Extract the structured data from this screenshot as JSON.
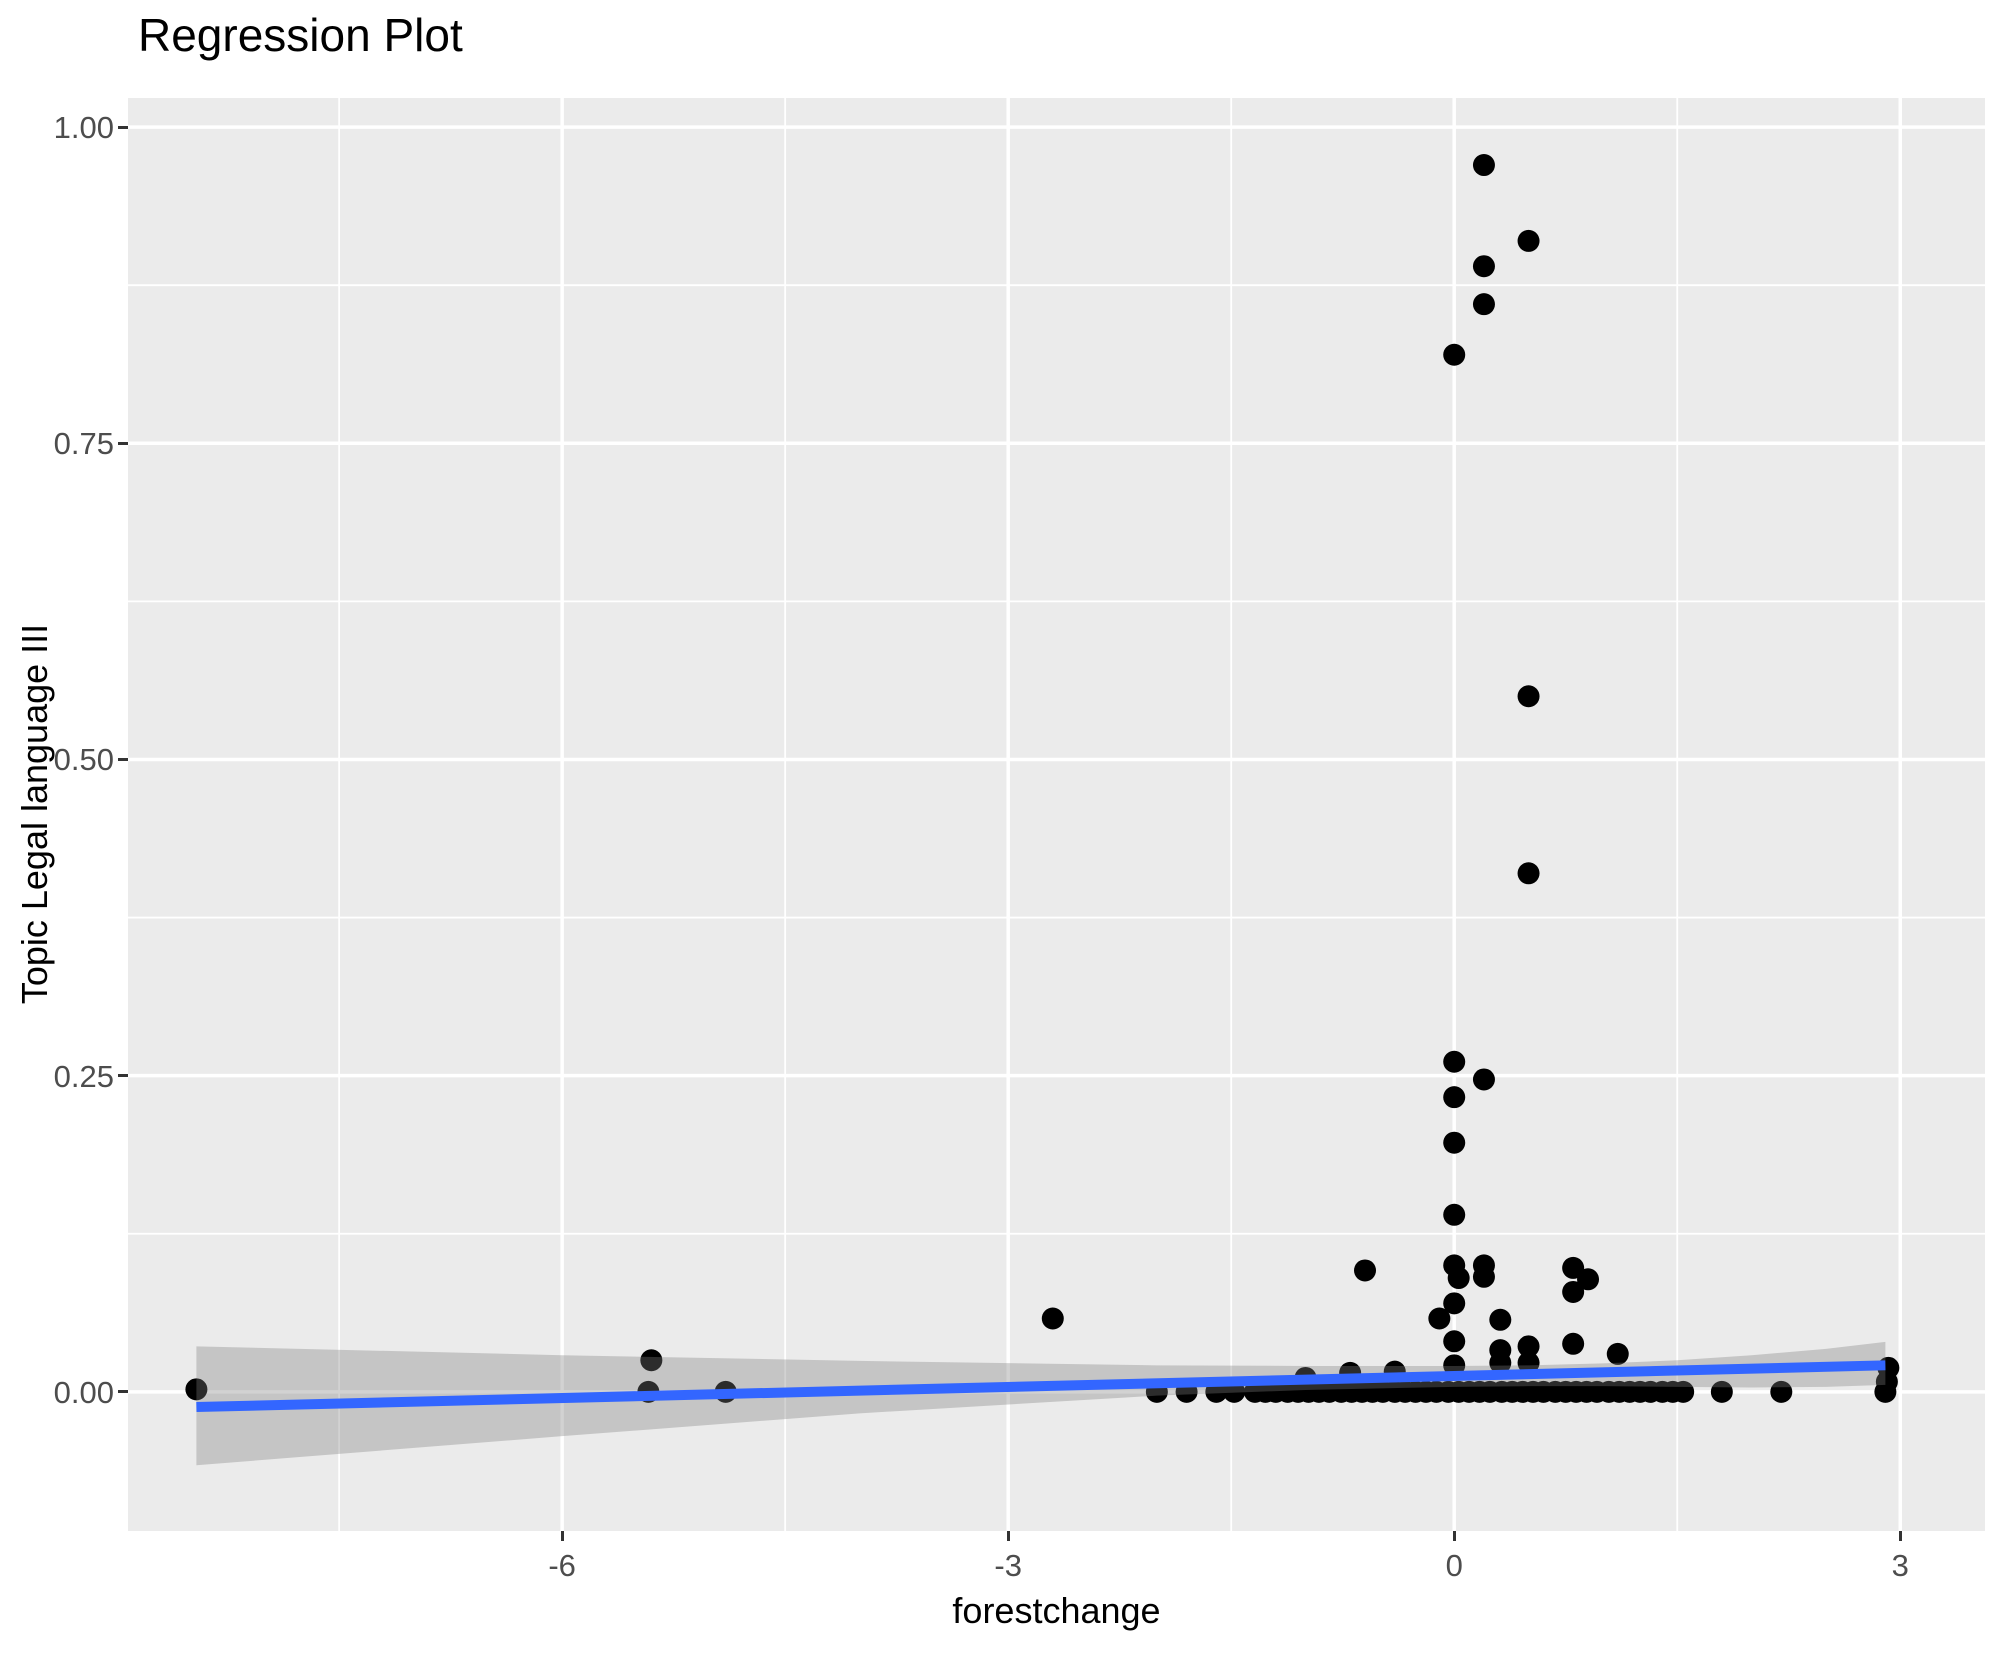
{
  "title": "Regression Plot",
  "chart_data": {
    "type": "scatter",
    "title": "Regression Plot",
    "xlabel": "forestchange",
    "ylabel": "Topic Legal language III",
    "xlim": [
      -8.92,
      3.57
    ],
    "ylim": [
      -0.11,
      1.023
    ],
    "x_major_ticks": [
      -6,
      -3,
      0,
      3
    ],
    "x_tick_labels": [
      "-6",
      "-3",
      "0",
      "3"
    ],
    "x_minor_ticks": [
      -7.5,
      -4.5,
      -1.5,
      1.5
    ],
    "y_major_ticks": [
      0.0,
      0.25,
      0.5,
      0.75,
      1.0
    ],
    "y_tick_labels": [
      "0.00",
      "0.25",
      "0.50",
      "0.75",
      "1.00"
    ],
    "y_minor_ticks": [
      0.125,
      0.375,
      0.625,
      0.875
    ],
    "grid": true,
    "legend": "none",
    "points": [
      [
        0.2,
        0.97
      ],
      [
        0.5,
        0.91
      ],
      [
        0.2,
        0.89
      ],
      [
        0.2,
        0.86
      ],
      [
        0.0,
        0.82
      ],
      [
        0.5,
        0.55
      ],
      [
        0.5,
        0.41
      ],
      [
        0.0,
        0.261
      ],
      [
        0.2,
        0.247
      ],
      [
        0.0,
        0.233
      ],
      [
        0.0,
        0.197
      ],
      [
        0.0,
        0.14
      ],
      [
        -0.6,
        0.096
      ],
      [
        0.0,
        0.1
      ],
      [
        0.03,
        0.09
      ],
      [
        0.2,
        0.1
      ],
      [
        0.2,
        0.091
      ],
      [
        0.8,
        0.098
      ],
      [
        0.9,
        0.089
      ],
      [
        0.8,
        0.079
      ],
      [
        0.0,
        0.07
      ],
      [
        -0.1,
        0.058
      ],
      [
        -2.7,
        0.058
      ],
      [
        0.31,
        0.057
      ],
      [
        0.0,
        0.04
      ],
      [
        0.31,
        0.033
      ],
      [
        0.5,
        0.036
      ],
      [
        0.8,
        0.038
      ],
      [
        1.1,
        0.03
      ],
      [
        0.0,
        0.021
      ],
      [
        0.31,
        0.023
      ],
      [
        0.5,
        0.023
      ],
      [
        -5.4,
        0.025
      ],
      [
        -1.0,
        0.011
      ],
      [
        -0.7,
        0.015
      ],
      [
        -0.4,
        0.016
      ],
      [
        2.92,
        0.019
      ],
      [
        2.91,
        0.008
      ],
      [
        -8.46,
        0.002
      ],
      [
        -5.42,
        0.0
      ],
      [
        -4.9,
        0.0
      ],
      [
        -2.0,
        0.0
      ],
      [
        -1.8,
        0.0
      ],
      [
        -1.6,
        0.0
      ],
      [
        -1.48,
        0.0
      ],
      [
        -1.34,
        0.0
      ],
      [
        -1.27,
        0.0
      ],
      [
        -1.2,
        0.0
      ],
      [
        -1.12,
        0.0
      ],
      [
        -1.05,
        0.0
      ],
      [
        -0.98,
        0.0
      ],
      [
        -0.91,
        0.0
      ],
      [
        -0.84,
        0.0
      ],
      [
        -0.76,
        0.0
      ],
      [
        -0.69,
        0.0
      ],
      [
        -0.62,
        0.0
      ],
      [
        -0.55,
        0.0
      ],
      [
        -0.48,
        0.0
      ],
      [
        -0.4,
        0.0
      ],
      [
        -0.33,
        0.0
      ],
      [
        -0.26,
        0.0
      ],
      [
        -0.19,
        0.0
      ],
      [
        -0.12,
        0.0
      ],
      [
        -0.04,
        0.0
      ],
      [
        0.03,
        0.0
      ],
      [
        0.1,
        0.0
      ],
      [
        0.17,
        0.0
      ],
      [
        0.24,
        0.0
      ],
      [
        0.32,
        0.0
      ],
      [
        0.39,
        0.0
      ],
      [
        0.46,
        0.0
      ],
      [
        0.53,
        0.0
      ],
      [
        0.6,
        0.0
      ],
      [
        0.68,
        0.0
      ],
      [
        0.75,
        0.0
      ],
      [
        0.82,
        0.0
      ],
      [
        0.89,
        0.0
      ],
      [
        0.96,
        0.0
      ],
      [
        1.04,
        0.0
      ],
      [
        1.11,
        0.0
      ],
      [
        1.18,
        0.0
      ],
      [
        1.25,
        0.0
      ],
      [
        1.32,
        0.0
      ],
      [
        1.4,
        0.0
      ],
      [
        1.47,
        0.0
      ],
      [
        1.54,
        0.0
      ],
      [
        1.8,
        0.0
      ],
      [
        2.2,
        0.0
      ],
      [
        2.9,
        0.0
      ]
    ],
    "regression_line": {
      "x1": -8.46,
      "y1": -0.012,
      "x2": 2.9,
      "y2": 0.021
    },
    "confidence_band": {
      "upper": [
        [
          -8.46,
          0.036
        ],
        [
          -6,
          0.029
        ],
        [
          -4,
          0.0245
        ],
        [
          -2,
          0.021
        ],
        [
          -1,
          0.0205
        ],
        [
          0,
          0.0205
        ],
        [
          0.5,
          0.021
        ],
        [
          1,
          0.0225
        ],
        [
          1.5,
          0.025
        ],
        [
          2,
          0.029
        ],
        [
          2.5,
          0.034
        ],
        [
          2.9,
          0.0395
        ]
      ],
      "lower": [
        [
          -8.46,
          -0.058
        ],
        [
          -6,
          -0.035
        ],
        [
          -4,
          -0.017
        ],
        [
          -2,
          -0.003
        ],
        [
          -1,
          0.0015
        ],
        [
          0,
          0.004
        ],
        [
          0.5,
          0.0045
        ],
        [
          1,
          0.0045
        ],
        [
          1.5,
          0.004
        ],
        [
          2,
          0.0035
        ],
        [
          2.5,
          0.004
        ],
        [
          2.9,
          0.0055
        ]
      ]
    },
    "colors": {
      "panel_bg": "#EBEBEB",
      "grid_major": "#FFFFFF",
      "grid_minor": "#FFFFFF",
      "point": "#000000",
      "line": "#3366FF",
      "band": "rgba(125,125,125,0.35)",
      "tick_label": "#4D4D4D",
      "tick_mark": "#333333",
      "text": "#000000"
    },
    "point_radius": 11,
    "line_width": 10
  }
}
